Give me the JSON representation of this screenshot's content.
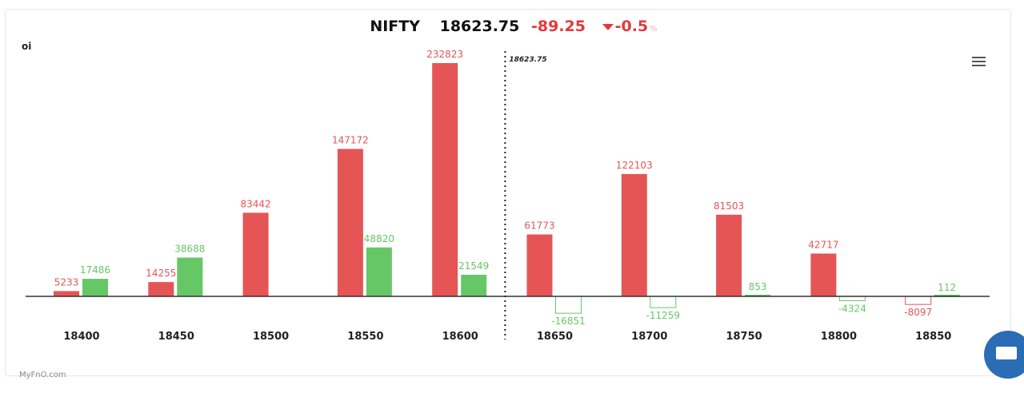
{
  "header": {
    "symbol": "NIFTY",
    "price": "18623.75",
    "change": "-89.25",
    "change_pct": "-0.5",
    "pct_sign": "%",
    "direction_icon": "triangle-down-icon"
  },
  "watermark": "MyFnO.com",
  "menu_icon": "hamburger-menu-icon",
  "chat_icon": "chat-bubble-icon",
  "colors": {
    "call": "#e55555",
    "put": "#66c766"
  },
  "chart_data": {
    "type": "bar",
    "ylabel": "oi",
    "categories": [
      "18400",
      "18450",
      "18500",
      "18550",
      "18600",
      "18650",
      "18700",
      "18750",
      "18800",
      "18850"
    ],
    "series": [
      {
        "values": [
          5233,
          14255,
          83442,
          147172,
          232823,
          61773,
          122103,
          81503,
          42717,
          -8097
        ],
        "color": "#e55555"
      },
      {
        "values": [
          17486,
          38688,
          null,
          48820,
          21549,
          -16851,
          -11259,
          853,
          -4324,
          112
        ],
        "color": "#66c766"
      }
    ],
    "spot_marker": {
      "value": 18623.75,
      "label": "18623.75"
    },
    "grid": false
  }
}
